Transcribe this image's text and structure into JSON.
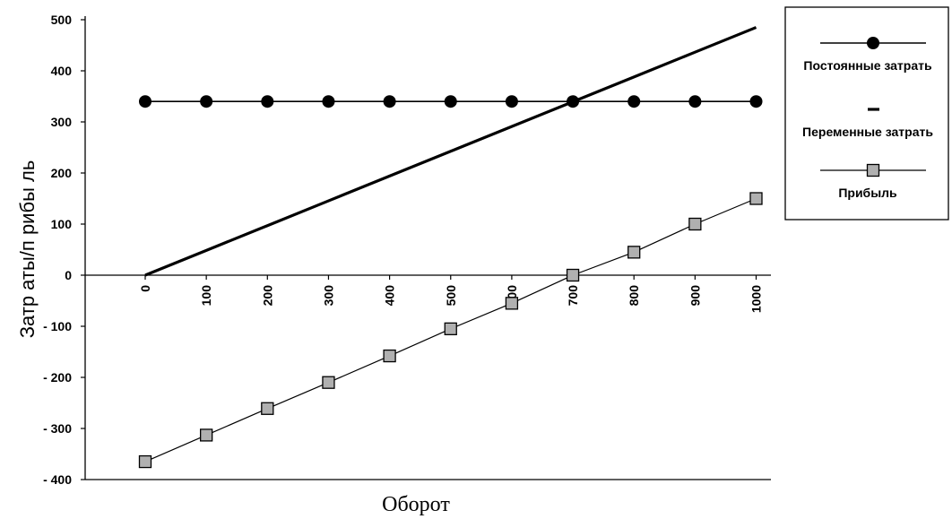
{
  "chart_data": {
    "type": "line",
    "xlabel": "Оборот",
    "ylabel": "Затр аты/п рибы ль",
    "ylim": [
      -400,
      500
    ],
    "y_ticks": [
      500,
      400,
      300,
      200,
      100,
      0,
      -100,
      -200,
      -300,
      -400
    ],
    "y_tick_labels": [
      "500",
      "400",
      "300",
      "200",
      "100",
      "0",
      "- 100",
      "- 200",
      "- 300",
      "- 400"
    ],
    "categories": [
      "0",
      "100",
      "200",
      "300",
      "400",
      "500",
      "600",
      "700",
      "800",
      "900",
      "1000"
    ],
    "x": [
      0,
      100,
      200,
      300,
      400,
      500,
      600,
      700,
      800,
      900,
      1000
    ],
    "grid": false,
    "legend_position": "right",
    "series": [
      {
        "name": "Постоянные затрать",
        "values": [
          340,
          340,
          340,
          340,
          340,
          340,
          340,
          340,
          340,
          340,
          340
        ],
        "marker": "circle",
        "color": "#000000"
      },
      {
        "name": "Переменные затрать",
        "values": [
          0,
          48.5,
          97,
          145.5,
          194,
          242.5,
          291,
          339.5,
          388,
          436.5,
          485
        ],
        "marker": "none",
        "color": "#000000"
      },
      {
        "name": "Прибыль",
        "values": [
          -365,
          -313,
          -261,
          -210,
          -158,
          -105,
          -55,
          0,
          45,
          100,
          150
        ],
        "marker": "square",
        "color": "#b0b0b0"
      }
    ]
  }
}
